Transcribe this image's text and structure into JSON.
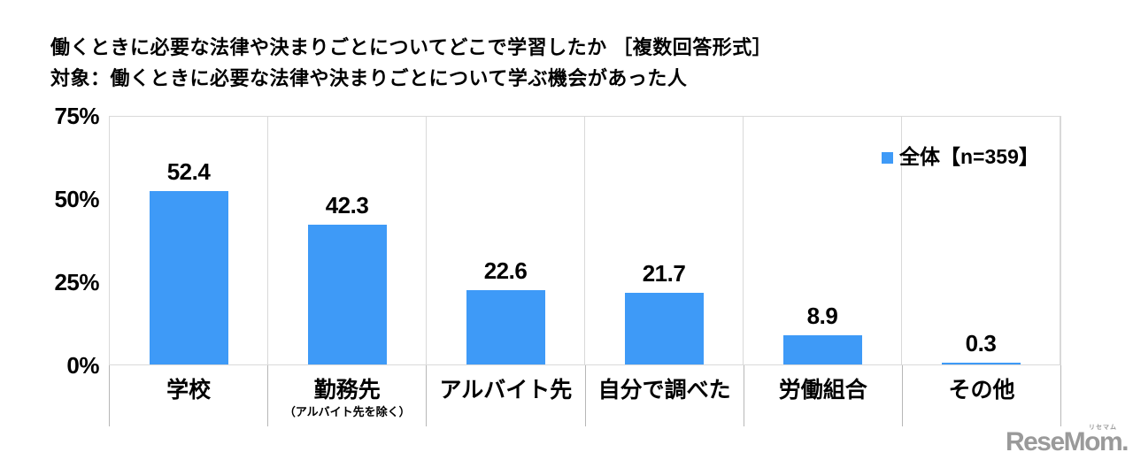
{
  "header": {
    "title_line1": "働くときに必要な法律や決まりごとについてどこで学習したか ［複数回答形式］",
    "title_line2": "対象：働くときに必要な法律や決まりごとについて学ぶ機会があった人"
  },
  "chart_data": {
    "type": "bar",
    "title": "働くときに必要な法律や決まりごとについてどこで学習したか ［複数回答形式］",
    "subtitle": "対象：働くときに必要な法律や決まりごとについて学ぶ機会があった人",
    "categories": [
      "学校",
      "勤務先",
      "アルバイト先",
      "自分で調べた",
      "労働組合",
      "その他"
    ],
    "category_sublabels": [
      "",
      "（アルバイト先を除く）",
      "",
      "",
      "",
      ""
    ],
    "values": [
      52.4,
      42.3,
      22.6,
      21.7,
      8.9,
      0.3
    ],
    "series": [
      {
        "name": "全体【n=359】",
        "values": [
          52.4,
          42.3,
          22.6,
          21.7,
          8.9,
          0.3
        ]
      }
    ],
    "unit": "%",
    "y_ticks": [
      "75%",
      "50%",
      "25%",
      "0%"
    ],
    "ylim": [
      0,
      75
    ],
    "grid": "vertical category dividers only, no horizontal gridlines",
    "legend_position": "top-right",
    "bar_color": "#3E9AF7"
  },
  "legend": {
    "label": "全体【n=359】",
    "marker_color": "#3E9AF7"
  },
  "footer": {
    "logo_text": "ReseMom.",
    "logo_ruby": "リセマム"
  },
  "colors": {
    "bar": "#3E9AF7",
    "plot_border": "#D9D9D9",
    "axis_divider": "#B7B7B7",
    "text": "#000000",
    "logo": "#9A9A9A",
    "background": "#FFFFFF"
  }
}
